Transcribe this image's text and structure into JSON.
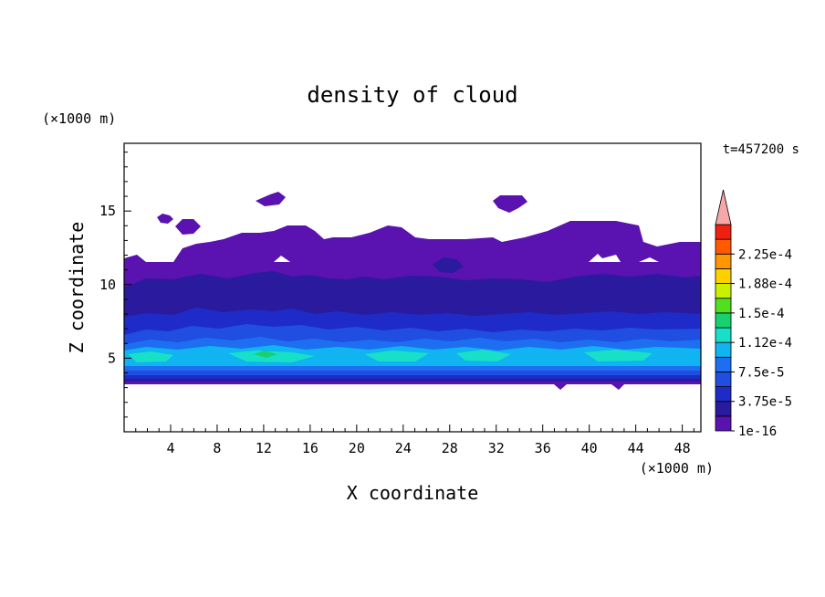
{
  "chart_data": {
    "type": "contour",
    "title": "density of cloud",
    "xlabel": "X coordinate",
    "ylabel": "Z coordinate",
    "x_unit": "(×1000 m)",
    "y_unit": "(×1000 m)",
    "time_label": "t=457200 s",
    "xlim": [
      0,
      49.6
    ],
    "ylim": [
      0,
      19.6
    ],
    "x_ticks": [
      4,
      8,
      12,
      16,
      20,
      24,
      28,
      32,
      36,
      40,
      44,
      48
    ],
    "y_ticks": [
      5,
      10,
      15
    ],
    "colorbar": {
      "levels": [
        1e-16,
        1.875e-05,
        3.75e-05,
        5.625e-05,
        7.5e-05,
        9.375e-05,
        0.0001125,
        0.00013125,
        0.00015,
        0.00016875,
        0.0001875,
        0.00020625,
        0.000225,
        0.00024375
      ],
      "tick_labels": [
        "1e-16",
        "3.75e-5",
        "7.5e-5",
        "1.12e-4",
        "1.5e-4",
        "1.88e-4",
        "2.25e-4"
      ],
      "colors": [
        "#5a12b0",
        "#2a1a9e",
        "#1f2bc8",
        "#1f4ee0",
        "#1e6ef2",
        "#10b4f0",
        "#18e0c8",
        "#18d070",
        "#50e020",
        "#c8f000",
        "#ffd000",
        "#ff9800",
        "#ff5a00",
        "#f02010"
      ],
      "overflow_color": "#f4a8a8"
    },
    "field_summary": {
      "cloud_base_z": 3.6,
      "cloud_top_z": 14.5,
      "core_layer_z": [
        4.6,
        5.8
      ],
      "max_level_band": 7
    }
  }
}
